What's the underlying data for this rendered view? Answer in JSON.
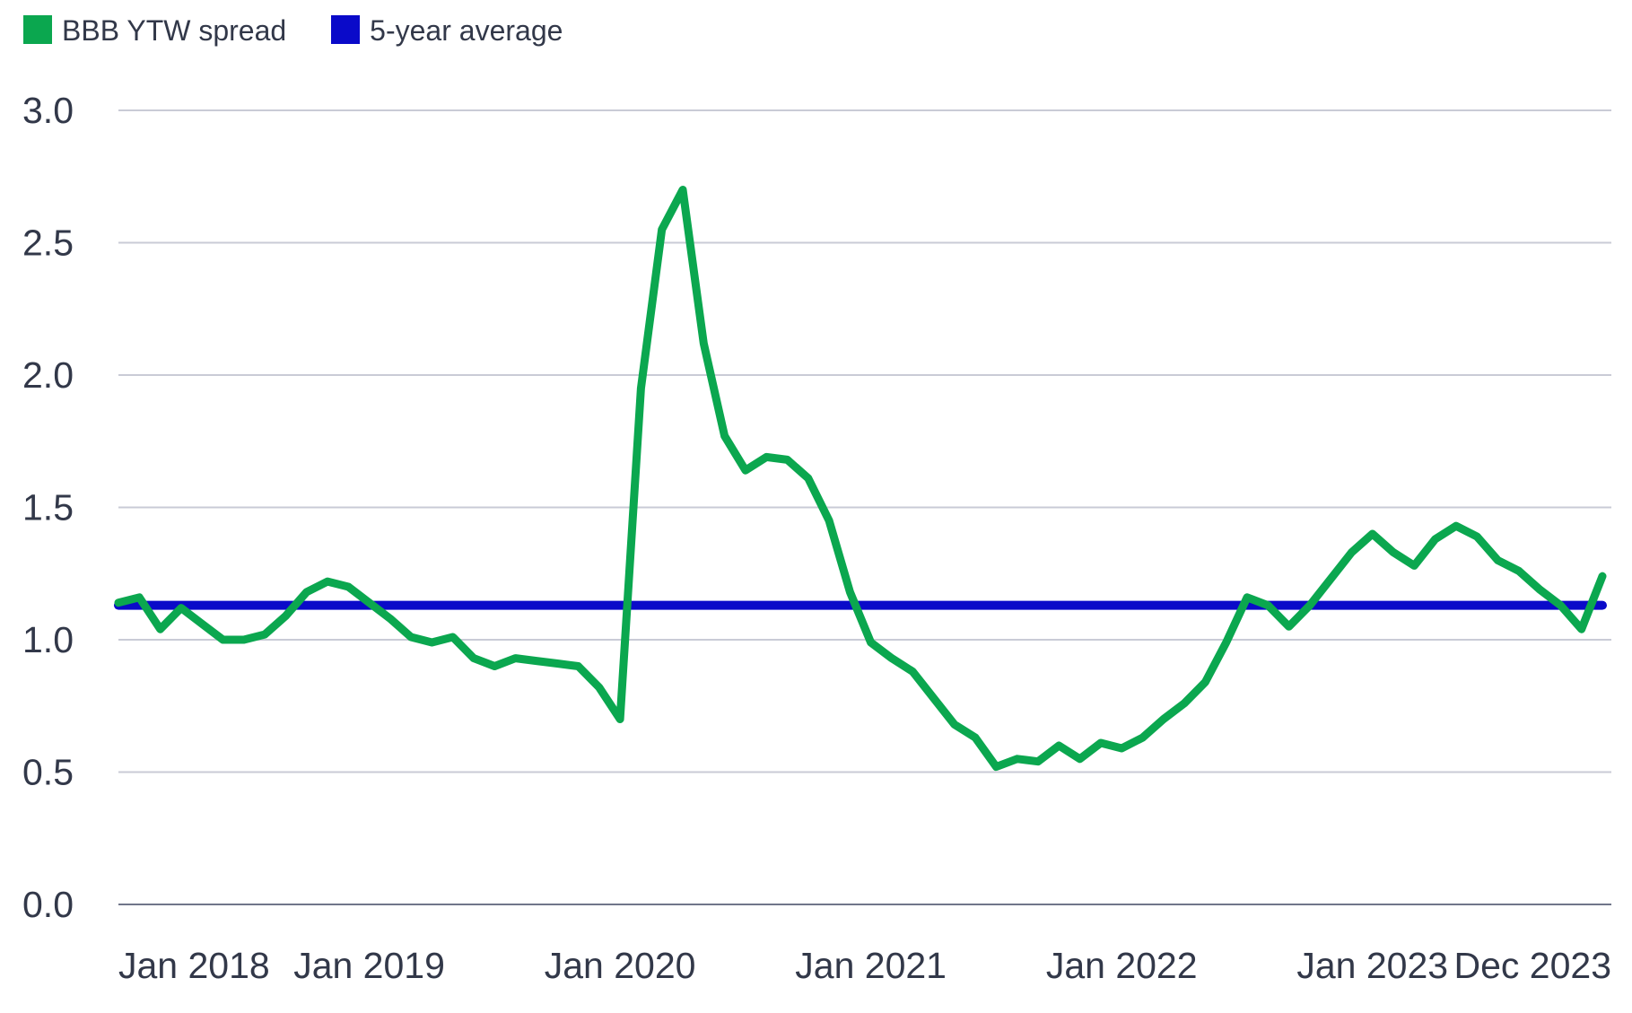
{
  "legend": {
    "items": [
      {
        "label": "BBB YTW spread",
        "color": "#0ba74f"
      },
      {
        "label": "5-year average",
        "color": "#0a0ac9"
      }
    ]
  },
  "colors": {
    "series_green": "#0ba74f",
    "series_blue": "#0a0ac9",
    "text": "#323849",
    "gridline": "#c9cbd6",
    "baseline_axis": "#70768a",
    "background": "#ffffff"
  },
  "chart_data": {
    "type": "line",
    "title": "",
    "xlabel": "",
    "ylabel": "",
    "frequency": "monthly",
    "x_start": "Jan 2018",
    "x_end": "Dec 2023",
    "x_tick_labels": [
      "Jan 2018",
      "Jan 2019",
      "Jan 2020",
      "Jan 2021",
      "Jan 2022",
      "Jan 2023",
      "Dec 2023"
    ],
    "x_tick_month_indices": [
      0,
      12,
      24,
      36,
      48,
      60,
      71
    ],
    "ylim": [
      0.0,
      3.0
    ],
    "y_ticks": [
      3.0,
      2.5,
      2.0,
      1.5,
      1.0,
      0.5,
      0.0
    ],
    "grid": "horizontal",
    "legend_position": "top-left",
    "series": [
      {
        "name": "BBB YTW spread",
        "color": "#0ba74f",
        "style": "line",
        "values": [
          1.14,
          1.16,
          1.04,
          1.12,
          1.06,
          1.0,
          1.0,
          1.02,
          1.09,
          1.18,
          1.22,
          1.2,
          1.14,
          1.08,
          1.01,
          0.99,
          1.01,
          0.93,
          0.9,
          0.93,
          0.92,
          0.91,
          0.9,
          0.82,
          0.7,
          1.95,
          2.55,
          2.7,
          2.12,
          1.77,
          1.64,
          1.69,
          1.68,
          1.61,
          1.45,
          1.18,
          0.99,
          0.93,
          0.88,
          0.78,
          0.68,
          0.63,
          0.52,
          0.55,
          0.54,
          0.6,
          0.55,
          0.61,
          0.59,
          0.63,
          0.7,
          0.76,
          0.84,
          0.99,
          1.16,
          1.13,
          1.05,
          1.13,
          1.23,
          1.33,
          1.4,
          1.33,
          1.28,
          1.38,
          1.43,
          1.39,
          1.3,
          1.26,
          1.19,
          1.13,
          1.04,
          1.24
        ]
      },
      {
        "name": "5-year average",
        "color": "#0a0ac9",
        "style": "horizontal-reference-line",
        "value": 1.13
      }
    ]
  }
}
